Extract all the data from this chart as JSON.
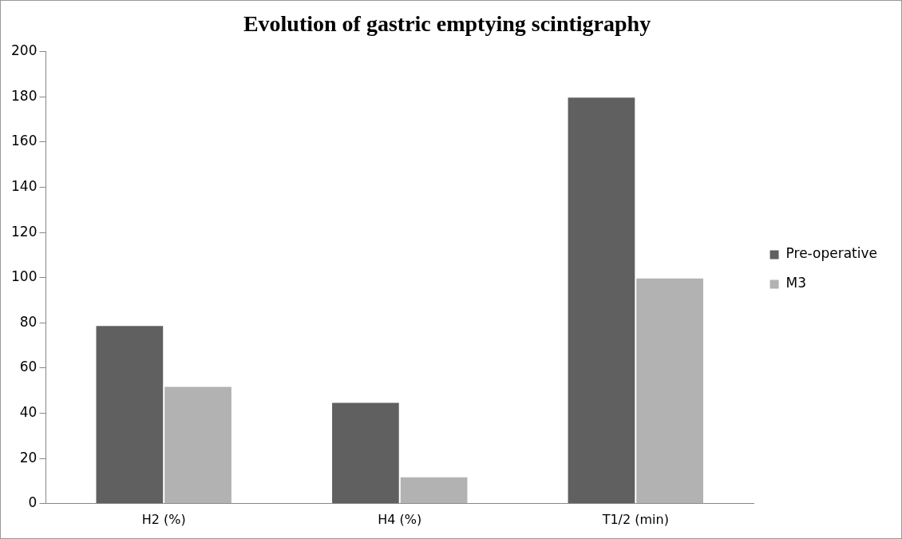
{
  "chart_data": {
    "type": "bar",
    "title": "Evolution of gastric emptying scintigraphy",
    "categories": [
      "H2 (%)",
      "H4 (%)",
      "T1/2 (min)"
    ],
    "series": [
      {
        "name": "Pre-operative",
        "color": "#606060",
        "values": [
          79,
          45,
          180
        ]
      },
      {
        "name": "M3",
        "color": "#b2b2b2",
        "values": [
          52,
          12,
          100
        ]
      }
    ],
    "ylim": [
      0,
      200
    ],
    "yticks": [
      0,
      20,
      40,
      60,
      80,
      100,
      120,
      140,
      160,
      180,
      200
    ],
    "grid": false,
    "legend": "right"
  }
}
